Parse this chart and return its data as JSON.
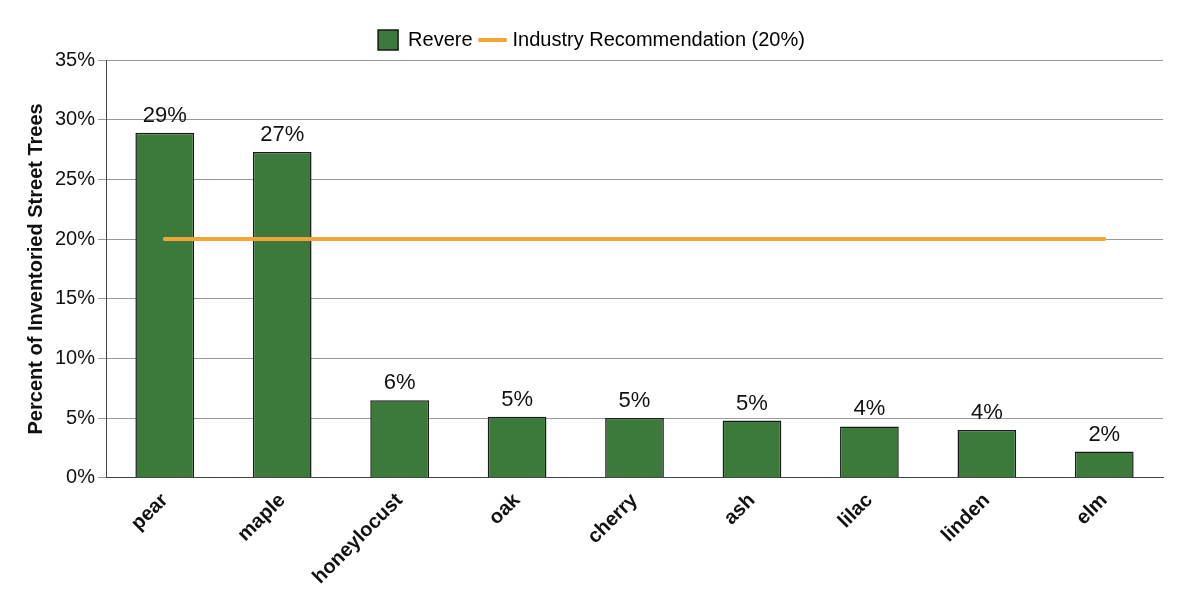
{
  "chart_data": {
    "type": "bar",
    "ylabel": "Percent of Inventoried Street Trees",
    "categories": [
      "pear",
      "maple",
      "honeylocust",
      "oak",
      "cherry",
      "ash",
      "lilac",
      "linden",
      "elm"
    ],
    "series": [
      {
        "name": "Revere",
        "color": "#3b7a3b",
        "values": [
          28.9,
          27.3,
          6.5,
          5.1,
          5.0,
          4.8,
          4.3,
          4.0,
          2.2
        ],
        "value_labels": [
          "29%",
          "27%",
          "6%",
          "5%",
          "5%",
          "5%",
          "4%",
          "4%",
          "2%"
        ]
      },
      {
        "name": "Industry Recommendation (20%)",
        "type": "line",
        "color": "#f0a535",
        "marker": "none",
        "values": [
          20,
          20,
          20,
          20,
          20,
          20,
          20,
          20,
          20
        ]
      }
    ],
    "ylim": [
      0,
      35
    ],
    "yticks": [
      {
        "value": 0,
        "label": "0%"
      },
      {
        "value": 5,
        "label": "5%"
      },
      {
        "value": 10,
        "label": "10%"
      },
      {
        "value": 15,
        "label": "15%"
      },
      {
        "value": 20,
        "label": "20%"
      },
      {
        "value": 25,
        "label": "25%"
      },
      {
        "value": 30,
        "label": "30%"
      },
      {
        "value": 35,
        "label": "35%"
      }
    ],
    "grid": "y",
    "legend": "top"
  }
}
